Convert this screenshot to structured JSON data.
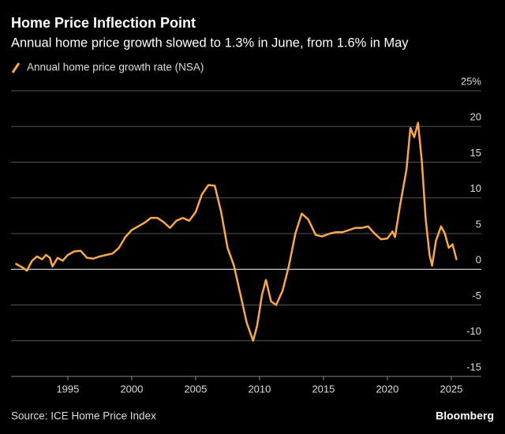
{
  "chart_data": {
    "type": "line",
    "title": "Home Price Inflection Point",
    "subtitle": "Annual home price growth slowed to 1.3% in June, from 1.6% in May",
    "source": "Source: ICE Home Price Index",
    "brand": "Bloomberg",
    "xlim": [
      1990.56,
      2027.35
    ],
    "xticks": [
      1995,
      2000,
      2005,
      2010,
      2015,
      2020,
      2025
    ],
    "ylim": [
      -15,
      25
    ],
    "yticks": [
      -15,
      -10,
      -5,
      0,
      5,
      10,
      15,
      20,
      {
        "value": 25,
        "label": "25%"
      }
    ],
    "grid": true,
    "series": [
      {
        "name": "Annual home price growth rate (NSA)",
        "color": "#f7a94b",
        "x": [
          1990.9,
          1991.5,
          1991.8,
          1992.2,
          1992.6,
          1993.0,
          1993.3,
          1993.6,
          1993.8,
          1994.2,
          1994.6,
          1995.0,
          1995.5,
          1996.0,
          1996.5,
          1997.0,
          1997.5,
          1998.0,
          1998.5,
          1999.0,
          1999.5,
          2000.0,
          2000.5,
          2001.0,
          2001.5,
          2002.0,
          2002.5,
          2003.0,
          2003.5,
          2004.0,
          2004.5,
          2005.0,
          2005.5,
          2006.0,
          2006.5,
          2007.0,
          2007.5,
          2008.0,
          2008.5,
          2009.0,
          2009.5,
          2009.8,
          2010.2,
          2010.5,
          2010.9,
          2011.3,
          2011.8,
          2012.3,
          2012.8,
          2013.3,
          2013.8,
          2014.4,
          2014.9,
          2015.5,
          2016.0,
          2016.5,
          2017.0,
          2017.5,
          2018.0,
          2018.5,
          2019.0,
          2019.5,
          2020.0,
          2020.4,
          2020.6,
          2021.0,
          2021.5,
          2021.8,
          2022.1,
          2022.4,
          2022.7,
          2023.0,
          2023.3,
          2023.5,
          2023.8,
          2024.2,
          2024.5,
          2024.8,
          2025.1,
          2025.42
        ],
        "values": [
          0.8,
          0.2,
          -0.2,
          1.2,
          1.8,
          1.4,
          2.0,
          1.6,
          0.4,
          1.6,
          1.2,
          2.0,
          2.5,
          2.6,
          1.6,
          1.5,
          1.8,
          2.0,
          2.2,
          3.0,
          4.5,
          5.5,
          6.0,
          6.5,
          7.2,
          7.2,
          6.6,
          5.8,
          6.8,
          7.2,
          6.8,
          8.0,
          10.5,
          11.8,
          11.7,
          8.0,
          3.0,
          0.5,
          -3.5,
          -7.5,
          -10.0,
          -8.0,
          -3.5,
          -1.5,
          -4.5,
          -5.0,
          -3.0,
          0.5,
          5.0,
          7.8,
          7.0,
          4.8,
          4.6,
          5.0,
          5.2,
          5.2,
          5.5,
          5.8,
          5.8,
          6.0,
          5.0,
          4.2,
          4.3,
          5.3,
          4.5,
          9.0,
          14.0,
          19.8,
          18.5,
          20.5,
          15.0,
          7.0,
          2.0,
          0.5,
          4.0,
          6.0,
          5.0,
          3.0,
          3.5,
          1.3
        ]
      }
    ]
  }
}
